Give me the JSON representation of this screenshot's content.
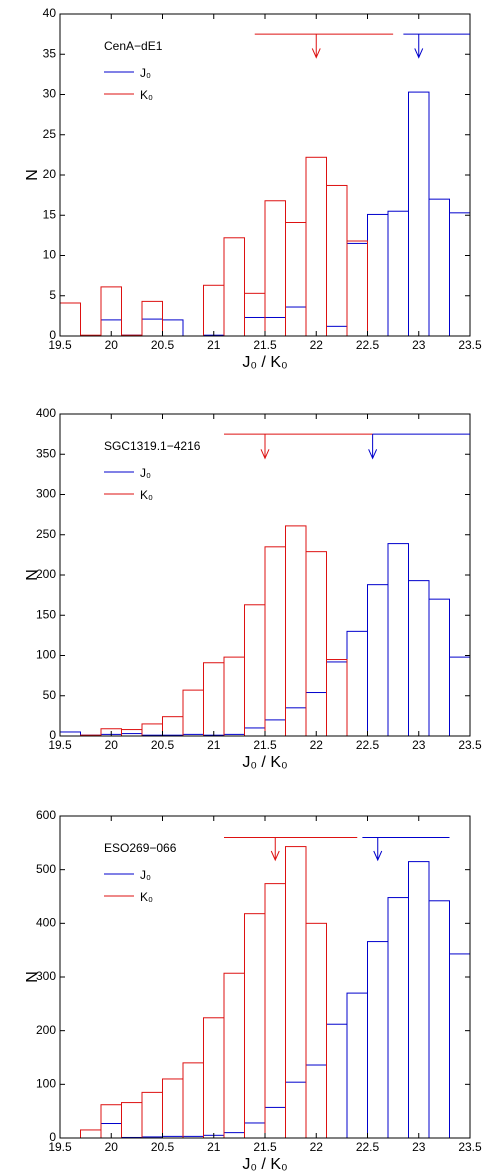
{
  "chart_data": [
    {
      "type": "histogram",
      "annotation": "CenA−dE1",
      "xlabel": "J₀ / K₀",
      "ylabel": "N",
      "bins": [
        19.5,
        19.7,
        19.9,
        20.1,
        20.3,
        20.5,
        20.7,
        20.9,
        21.1,
        21.3,
        21.5,
        21.7,
        21.9,
        22.1,
        22.3,
        22.5,
        22.7,
        22.9,
        23.1,
        23.3,
        23.5
      ],
      "series": [
        {
          "name": "J₀",
          "color": "#0000cc",
          "values": [
            0,
            0,
            2,
            0.1,
            2.1,
            2,
            0,
            0.1,
            0,
            2.3,
            2.3,
            3.6,
            0,
            1.2,
            11.5,
            15.1,
            15.5,
            30.3,
            17,
            15.3
          ]
        },
        {
          "name": "K₀",
          "color": "#dd1111",
          "values": [
            4.1,
            0.1,
            6.1,
            0.1,
            4.3,
            0,
            0,
            6.3,
            12.2,
            5.3,
            16.8,
            14.1,
            22.2,
            18.7,
            11.8,
            0,
            0,
            0,
            0,
            0
          ]
        }
      ],
      "markers": [
        {
          "color": "#dd1111",
          "line": [
            21.4,
            22.75
          ],
          "y": 37.5,
          "x": 22.0,
          "tip": 34.6
        },
        {
          "color": "#0000cc",
          "line": [
            22.85,
            23.5
          ],
          "y": 37.5,
          "x": 23.0,
          "tip": 34.6
        }
      ],
      "xlim": [
        19.5,
        23.5
      ],
      "xticks": [
        19.5,
        20,
        20.5,
        21,
        21.5,
        22,
        22.5,
        23,
        23.5
      ],
      "ylim": [
        0,
        40
      ],
      "yticks": [
        0,
        5,
        10,
        15,
        20,
        25,
        30,
        35,
        40
      ]
    },
    {
      "type": "histogram",
      "annotation": "SGC1319.1−4216",
      "xlabel": "J₀ / K₀",
      "ylabel": "N",
      "bins": [
        19.5,
        19.7,
        19.9,
        20.1,
        20.3,
        20.5,
        20.7,
        20.9,
        21.1,
        21.3,
        21.5,
        21.7,
        21.9,
        22.1,
        22.3,
        22.5,
        22.7,
        22.9,
        23.1,
        23.3,
        23.5
      ],
      "series": [
        {
          "name": "J₀",
          "color": "#0000cc",
          "values": [
            5,
            1,
            2,
            3,
            1,
            1,
            2,
            1,
            2,
            10,
            20,
            35,
            54,
            92,
            130,
            188,
            239,
            193,
            170,
            98
          ]
        },
        {
          "name": "K₀",
          "color": "#dd1111",
          "values": [
            0,
            1,
            9,
            8,
            15,
            24,
            57,
            91,
            98,
            163,
            235,
            261,
            229,
            95,
            0,
            0,
            0,
            0,
            0,
            0
          ]
        }
      ],
      "markers": [
        {
          "color": "#dd1111",
          "line": [
            21.1,
            22.55
          ],
          "y": 375,
          "x": 21.5,
          "tip": 345
        },
        {
          "color": "#0000cc",
          "line": [
            22.55,
            23.5
          ],
          "y": 375,
          "x": 22.55,
          "tip": 345
        }
      ],
      "xlim": [
        19.5,
        23.5
      ],
      "xticks": [
        19.5,
        20,
        20.5,
        21,
        21.5,
        22,
        22.5,
        23,
        23.5
      ],
      "ylim": [
        0,
        400
      ],
      "yticks": [
        0,
        50,
        100,
        150,
        200,
        250,
        300,
        350,
        400
      ]
    },
    {
      "type": "histogram",
      "annotation": "ESO269−066",
      "xlabel": "J₀ / K₀",
      "ylabel": "N",
      "bins": [
        19.5,
        19.7,
        19.9,
        20.1,
        20.3,
        20.5,
        20.7,
        20.9,
        21.1,
        21.3,
        21.5,
        21.7,
        21.9,
        22.1,
        22.3,
        22.5,
        22.7,
        22.9,
        23.1,
        23.3,
        23.5
      ],
      "series": [
        {
          "name": "J₀",
          "color": "#0000cc",
          "values": [
            0,
            0,
            27,
            1,
            2,
            3,
            3,
            5,
            10,
            28,
            57,
            104,
            136,
            212,
            270,
            366,
            448,
            515,
            442,
            343
          ]
        },
        {
          "name": "K₀",
          "color": "#dd1111",
          "values": [
            0,
            15,
            62,
            66,
            85,
            110,
            140,
            224,
            307,
            418,
            474,
            543,
            400,
            0,
            0,
            0,
            0,
            0,
            0,
            0
          ]
        }
      ],
      "markers": [
        {
          "color": "#dd1111",
          "line": [
            21.1,
            22.4
          ],
          "y": 560,
          "x": 21.6,
          "tip": 518
        },
        {
          "color": "#0000cc",
          "line": [
            22.45,
            23.3
          ],
          "y": 560,
          "x": 22.6,
          "tip": 518
        }
      ],
      "xlim": [
        19.5,
        23.5
      ],
      "xticks": [
        19.5,
        20,
        20.5,
        21,
        21.5,
        22,
        22.5,
        23,
        23.5
      ],
      "ylim": [
        0,
        600
      ],
      "yticks": [
        0,
        100,
        200,
        300,
        400,
        500,
        600
      ]
    }
  ]
}
